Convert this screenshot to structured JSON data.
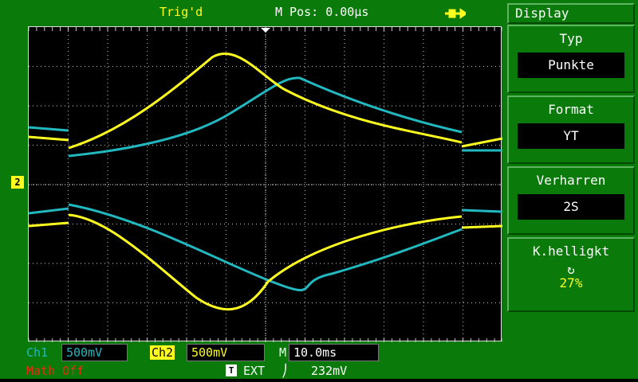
{
  "status": {
    "trigger_state": "Trig'd",
    "m_pos": "M Pos: 0.00µs",
    "usb_icon": "usb-icon"
  },
  "menu": {
    "title": "Display",
    "items": [
      {
        "label": "Typ",
        "value": "Punkte"
      },
      {
        "label": "Format",
        "value": "YT"
      },
      {
        "label": "Verharren",
        "value": "2S"
      },
      {
        "label": "K.helligkt",
        "icon": "rotate-knob-icon",
        "value": "27%"
      }
    ]
  },
  "bottom": {
    "ch1_label": "Ch1",
    "ch1_scale": "500mV",
    "ch2_label": "Ch2",
    "ch2_scale": "500mV",
    "time_label": "M",
    "time_scale": "10.0ms",
    "math": "Math Off",
    "trigger_icon": "T",
    "trigger_source": "EXT",
    "trigger_slope": "⎠",
    "trigger_level": "232mV"
  },
  "markers": {
    "ch2_marker": "2"
  },
  "colors": {
    "ch1": "#22b8c0",
    "ch2": "#ffff20",
    "background": "#0a7a0a",
    "math": "#e03010"
  }
}
